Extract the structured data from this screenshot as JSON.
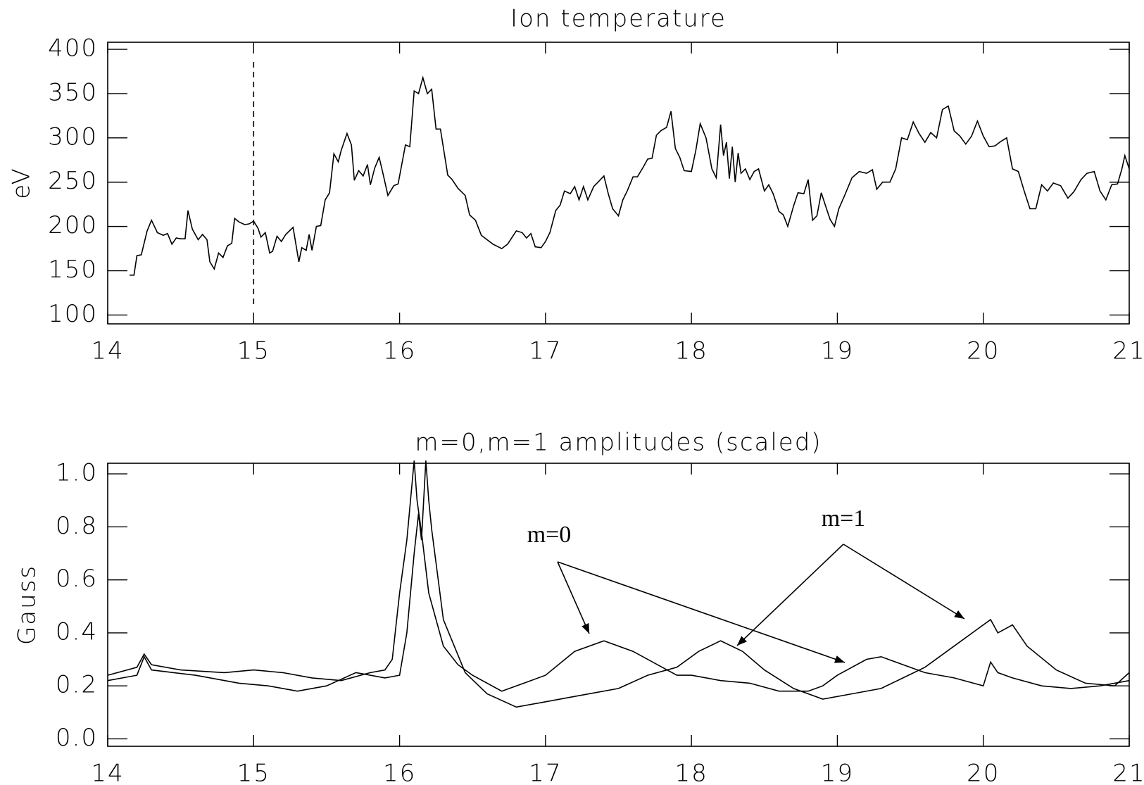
{
  "chart_data": [
    {
      "type": "line",
      "title": "Ion temperature",
      "y_label": "eV",
      "xlim": [
        14,
        21
      ],
      "xticks": [
        14,
        15,
        16,
        17,
        18,
        19,
        20,
        21
      ],
      "ylim": [
        90,
        408
      ],
      "yticks": [
        100,
        150,
        200,
        250,
        300,
        350,
        400
      ],
      "vlines": [
        15
      ],
      "series": [
        {
          "color": "#000000",
          "x": [
            14.15,
            14.18,
            14.2,
            14.23,
            14.27,
            14.3,
            14.34,
            14.38,
            14.41,
            14.44,
            14.47,
            14.5,
            14.53,
            14.55,
            14.58,
            14.62,
            14.65,
            14.68,
            14.7,
            14.73,
            14.76,
            14.79,
            14.82,
            14.85,
            14.87,
            14.9,
            14.94,
            14.97,
            15.0,
            15.03,
            15.05,
            15.08,
            15.11,
            15.13,
            15.16,
            15.19,
            15.22,
            15.27,
            15.31,
            15.33,
            15.36,
            15.38,
            15.4,
            15.43,
            15.46,
            15.49,
            15.52,
            15.55,
            15.58,
            15.6,
            15.64,
            15.67,
            15.69,
            15.72,
            15.75,
            15.78,
            15.8,
            15.83,
            15.86,
            15.89,
            15.92,
            15.96,
            15.99,
            16.04,
            16.07,
            16.1,
            16.13,
            16.16,
            16.19,
            16.22,
            16.25,
            16.28,
            16.33,
            16.36,
            16.4,
            16.45,
            16.48,
            16.52,
            16.56,
            16.64,
            16.7,
            16.74,
            16.8,
            16.84,
            16.87,
            16.9,
            16.93,
            16.97,
            17.0,
            17.03,
            17.07,
            17.1,
            17.13,
            17.17,
            17.2,
            17.23,
            17.26,
            17.29,
            17.33,
            17.36,
            17.4,
            17.43,
            17.46,
            17.5,
            17.53,
            17.56,
            17.6,
            17.63,
            17.67,
            17.7,
            17.73,
            17.76,
            17.79,
            17.83,
            17.86,
            17.89,
            17.92,
            17.95,
            18.0,
            18.03,
            18.06,
            18.1,
            18.14,
            18.17,
            18.2,
            18.22,
            18.24,
            18.26,
            18.28,
            18.3,
            18.32,
            18.34,
            18.37,
            18.4,
            18.43,
            18.46,
            18.5,
            18.53,
            18.56,
            18.6,
            18.63,
            18.66,
            18.7,
            18.73,
            18.77,
            18.8,
            18.83,
            18.86,
            18.89,
            18.92,
            18.95,
            18.98,
            19.01,
            19.05,
            19.1,
            19.15,
            19.2,
            19.24,
            19.27,
            19.31,
            19.36,
            19.4,
            19.44,
            19.48,
            19.52,
            19.56,
            19.6,
            19.64,
            19.68,
            19.72,
            19.76,
            19.8,
            19.84,
            19.88,
            19.92,
            19.96,
            20.0,
            20.04,
            20.08,
            20.12,
            20.16,
            20.2,
            20.24,
            20.28,
            20.32,
            20.36,
            20.4,
            20.44,
            20.48,
            20.53,
            20.58,
            20.62,
            20.67,
            20.71,
            20.76,
            20.8,
            20.84,
            20.88,
            20.92,
            20.95,
            20.97,
            21.0
          ],
          "values": [
            145,
            145,
            167,
            168,
            195,
            207,
            193,
            190,
            192,
            180,
            187,
            186,
            186,
            218,
            197,
            185,
            191,
            185,
            160,
            152,
            170,
            165,
            178,
            181,
            209,
            205,
            202,
            203,
            206,
            198,
            188,
            193,
            170,
            172,
            189,
            183,
            191,
            199,
            160,
            176,
            173,
            191,
            173,
            200,
            201,
            230,
            238,
            282,
            273,
            286,
            305,
            292,
            252,
            263,
            257,
            270,
            247,
            266,
            278,
            257,
            235,
            246,
            248,
            292,
            290,
            353,
            350,
            368,
            350,
            355,
            310,
            310,
            258,
            253,
            243,
            235,
            213,
            207,
            190,
            180,
            175,
            180,
            195,
            193,
            187,
            192,
            177,
            176,
            183,
            193,
            218,
            224,
            240,
            237,
            245,
            230,
            245,
            230,
            245,
            250,
            257,
            237,
            220,
            212,
            230,
            240,
            256,
            256,
            267,
            276,
            277,
            303,
            308,
            312,
            330,
            288,
            278,
            263,
            262,
            286,
            316,
            300,
            265,
            255,
            315,
            280,
            295,
            254,
            290,
            250,
            283,
            260,
            265,
            253,
            262,
            265,
            240,
            247,
            237,
            217,
            213,
            200,
            223,
            238,
            237,
            253,
            207,
            212,
            238,
            223,
            208,
            200,
            220,
            235,
            255,
            262,
            260,
            264,
            242,
            250,
            250,
            265,
            300,
            298,
            318,
            305,
            295,
            306,
            300,
            332,
            336,
            308,
            302,
            293,
            302,
            319,
            302,
            290,
            291,
            296,
            300,
            265,
            262,
            240,
            220,
            220,
            247,
            240,
            249,
            246,
            232,
            239,
            253,
            260,
            262,
            240,
            230,
            247,
            248,
            265,
            280,
            265
          ]
        }
      ]
    },
    {
      "type": "line",
      "title": "m=0,m=1 amplitudes (scaled)",
      "y_label": "Gauss",
      "xlim": [
        14,
        21
      ],
      "xticks": [
        14,
        15,
        16,
        17,
        18,
        19,
        20,
        21
      ],
      "ylim": [
        -0.028,
        1.04
      ],
      "yticks": [
        {
          "value": 0,
          "label": "0.0"
        },
        0.2,
        0.4,
        0.6,
        0.8,
        {
          "value": 1,
          "label": "1.0"
        }
      ],
      "series": [
        {
          "name": "m=0",
          "color": "#000000",
          "x": [
            14.0,
            14.2,
            14.25,
            14.3,
            14.5,
            14.8,
            15.0,
            15.2,
            15.4,
            15.6,
            15.8,
            15.9,
            15.95,
            16.0,
            16.05,
            16.1,
            16.12,
            16.15,
            16.2,
            16.3,
            16.4,
            16.5,
            16.7,
            16.9,
            17.0,
            17.2,
            17.4,
            17.6,
            17.8,
            17.9,
            18.0,
            18.2,
            18.4,
            18.6,
            18.8,
            18.9,
            19.0,
            19.2,
            19.3,
            19.45,
            19.6,
            19.8,
            20.0,
            20.05,
            20.1,
            20.2,
            20.4,
            20.6,
            20.8,
            21.0
          ],
          "values": [
            0.24,
            0.27,
            0.32,
            0.28,
            0.26,
            0.25,
            0.26,
            0.25,
            0.23,
            0.22,
            0.25,
            0.26,
            0.3,
            0.55,
            0.75,
            1.05,
            0.9,
            0.78,
            0.55,
            0.35,
            0.28,
            0.24,
            0.18,
            0.22,
            0.24,
            0.33,
            0.37,
            0.33,
            0.27,
            0.24,
            0.24,
            0.22,
            0.21,
            0.18,
            0.18,
            0.2,
            0.24,
            0.3,
            0.31,
            0.28,
            0.25,
            0.23,
            0.2,
            0.29,
            0.25,
            0.23,
            0.2,
            0.19,
            0.2,
            0.22
          ]
        },
        {
          "name": "m=1",
          "color": "#000000",
          "x": [
            14.0,
            14.2,
            14.25,
            14.3,
            14.6,
            14.9,
            15.1,
            15.3,
            15.5,
            15.7,
            15.9,
            16.0,
            16.05,
            16.1,
            16.13,
            16.15,
            16.18,
            16.2,
            16.22,
            16.3,
            16.45,
            16.6,
            16.8,
            17.0,
            17.2,
            17.5,
            17.7,
            17.9,
            18.05,
            18.2,
            18.35,
            18.5,
            18.7,
            18.9,
            19.1,
            19.3,
            19.45,
            19.6,
            19.8,
            19.95,
            20.05,
            20.1,
            20.2,
            20.3,
            20.5,
            20.7,
            20.9,
            21.0
          ],
          "values": [
            0.22,
            0.24,
            0.31,
            0.26,
            0.24,
            0.21,
            0.2,
            0.18,
            0.2,
            0.25,
            0.23,
            0.24,
            0.4,
            0.7,
            0.85,
            0.75,
            1.05,
            0.9,
            0.79,
            0.45,
            0.25,
            0.17,
            0.12,
            0.14,
            0.16,
            0.19,
            0.24,
            0.27,
            0.33,
            0.37,
            0.33,
            0.26,
            0.19,
            0.15,
            0.17,
            0.19,
            0.23,
            0.27,
            0.35,
            0.41,
            0.45,
            0.4,
            0.43,
            0.35,
            0.26,
            0.21,
            0.2,
            0.25
          ]
        }
      ]
    }
  ]
}
